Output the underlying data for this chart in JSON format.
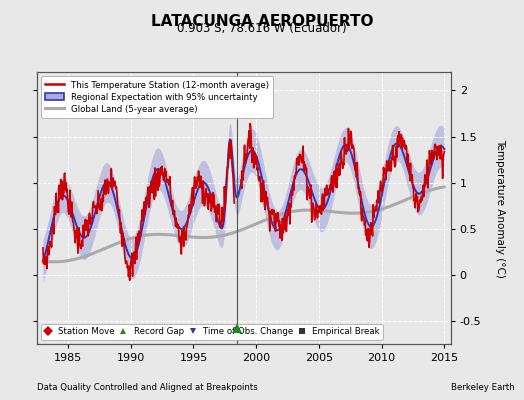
{
  "title": "LATACUNGA AEROPUERTO",
  "subtitle": "0.903 S, 78.616 W (Ecuador)",
  "ylabel": "Temperature Anomaly (°C)",
  "xlabel_left": "Data Quality Controlled and Aligned at Breakpoints",
  "xlabel_right": "Berkeley Earth",
  "xlim": [
    1982.5,
    2015.5
  ],
  "ylim": [
    -0.75,
    2.2
  ],
  "yticks": [
    -0.5,
    0,
    0.5,
    1.0,
    1.5,
    2.0
  ],
  "xticks": [
    1985,
    1990,
    1995,
    2000,
    2005,
    2010,
    2015
  ],
  "bg_color": "#e8e8e8",
  "grid_color": "#d0d0d0",
  "regional_color": "#3333bb",
  "regional_fill_color": "#aaaadd",
  "station_color": "#cc0000",
  "global_color": "#aaaaaa",
  "marker_legend": [
    {
      "label": "Station Move",
      "marker": "D",
      "color": "#cc0000"
    },
    {
      "label": "Record Gap",
      "marker": "^",
      "color": "#228822"
    },
    {
      "label": "Time of Obs. Change",
      "marker": "v",
      "color": "#3333bb"
    },
    {
      "label": "Empirical Break",
      "marker": "s",
      "color": "#333333"
    }
  ]
}
